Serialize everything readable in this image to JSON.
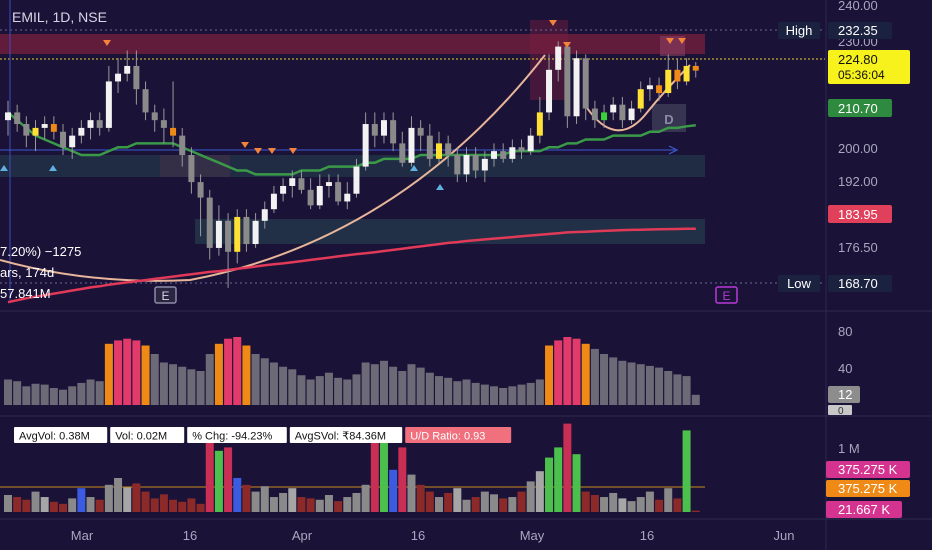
{
  "symbol_header": "EMIL, 1D, NSE",
  "chart_data": {
    "type": "candlestick",
    "title": "EMIL, 1D, NSE",
    "x_ticks": [
      "Mar",
      "16",
      "Apr",
      "16",
      "May",
      "16",
      "Jun"
    ],
    "y_ticks": [
      "240.00",
      "230.00",
      "224.80",
      "210.70",
      "200.00",
      "192.00",
      "183.95",
      "176.50",
      "168.70"
    ],
    "ylim": [
      164,
      242
    ],
    "price_labels": {
      "high_label": "High",
      "high": "232.35",
      "last": "224.80",
      "countdown": "05:36:04",
      "ma_short": "210.70",
      "ma_long": "183.95",
      "low_label": "Low",
      "low": "168.70"
    },
    "candles": [
      {
        "o": 212,
        "c": 214,
        "h": 217,
        "l": 208
      },
      {
        "o": 214,
        "c": 211,
        "h": 216,
        "l": 209
      },
      {
        "o": 211,
        "c": 208,
        "h": 213,
        "l": 205
      },
      {
        "o": 208,
        "c": 210,
        "h": 212,
        "l": 204
      },
      {
        "o": 210,
        "c": 211,
        "h": 213,
        "l": 207
      },
      {
        "o": 211,
        "c": 209,
        "h": 213,
        "l": 207
      },
      {
        "o": 209,
        "c": 205,
        "h": 211,
        "l": 203
      },
      {
        "o": 205,
        "c": 208,
        "h": 210,
        "l": 202
      },
      {
        "o": 208,
        "c": 210,
        "h": 212,
        "l": 206
      },
      {
        "o": 210,
        "c": 212,
        "h": 214,
        "l": 207
      },
      {
        "o": 212,
        "c": 210,
        "h": 214,
        "l": 208
      },
      {
        "o": 210,
        "c": 222,
        "h": 226,
        "l": 209
      },
      {
        "o": 222,
        "c": 224,
        "h": 228,
        "l": 219
      },
      {
        "o": 224,
        "c": 226,
        "h": 230,
        "l": 222
      },
      {
        "o": 226,
        "c": 220,
        "h": 230,
        "l": 216
      },
      {
        "o": 220,
        "c": 214,
        "h": 222,
        "l": 212
      },
      {
        "o": 214,
        "c": 212,
        "h": 216,
        "l": 209
      },
      {
        "o": 212,
        "c": 210,
        "h": 215,
        "l": 206
      },
      {
        "o": 210,
        "c": 208,
        "h": 222,
        "l": 205
      },
      {
        "o": 208,
        "c": 203,
        "h": 210,
        "l": 200
      },
      {
        "o": 203,
        "c": 196,
        "h": 205,
        "l": 193
      },
      {
        "o": 196,
        "c": 192,
        "h": 198,
        "l": 182
      },
      {
        "o": 192,
        "c": 179,
        "h": 194,
        "l": 176
      },
      {
        "o": 179,
        "c": 186,
        "h": 190,
        "l": 177
      },
      {
        "o": 186,
        "c": 178,
        "h": 188,
        "l": 168.7
      },
      {
        "o": 178,
        "c": 187,
        "h": 189,
        "l": 175
      },
      {
        "o": 187,
        "c": 180,
        "h": 189,
        "l": 178
      },
      {
        "o": 180,
        "c": 186,
        "h": 188,
        "l": 179
      },
      {
        "o": 186,
        "c": 189,
        "h": 191,
        "l": 184
      },
      {
        "o": 189,
        "c": 193,
        "h": 195,
        "l": 188
      },
      {
        "o": 193,
        "c": 195,
        "h": 197,
        "l": 191
      },
      {
        "o": 195,
        "c": 197,
        "h": 199,
        "l": 192
      },
      {
        "o": 197,
        "c": 194,
        "h": 199,
        "l": 193
      },
      {
        "o": 194,
        "c": 190,
        "h": 197,
        "l": 189
      },
      {
        "o": 190,
        "c": 195,
        "h": 198,
        "l": 189
      },
      {
        "o": 195,
        "c": 196,
        "h": 198,
        "l": 192
      },
      {
        "o": 196,
        "c": 191,
        "h": 198,
        "l": 190
      },
      {
        "o": 191,
        "c": 193,
        "h": 196,
        "l": 189
      },
      {
        "o": 193,
        "c": 200,
        "h": 202,
        "l": 192
      },
      {
        "o": 200,
        "c": 211,
        "h": 214,
        "l": 199
      },
      {
        "o": 211,
        "c": 208,
        "h": 214,
        "l": 205
      },
      {
        "o": 208,
        "c": 212,
        "h": 214,
        "l": 206
      },
      {
        "o": 212,
        "c": 206,
        "h": 214,
        "l": 204
      },
      {
        "o": 206,
        "c": 201,
        "h": 209,
        "l": 200
      },
      {
        "o": 201,
        "c": 210,
        "h": 213,
        "l": 200
      },
      {
        "o": 210,
        "c": 208,
        "h": 212,
        "l": 204
      },
      {
        "o": 208,
        "c": 202,
        "h": 211,
        "l": 200
      },
      {
        "o": 202,
        "c": 206,
        "h": 209,
        "l": 201
      },
      {
        "o": 206,
        "c": 203,
        "h": 208,
        "l": 200
      },
      {
        "o": 203,
        "c": 198,
        "h": 205,
        "l": 196
      },
      {
        "o": 198,
        "c": 203,
        "h": 205,
        "l": 196
      },
      {
        "o": 203,
        "c": 199,
        "h": 205,
        "l": 197
      },
      {
        "o": 199,
        "c": 202,
        "h": 204,
        "l": 196
      },
      {
        "o": 202,
        "c": 204,
        "h": 206,
        "l": 200
      },
      {
        "o": 204,
        "c": 202,
        "h": 206,
        "l": 201
      },
      {
        "o": 202,
        "c": 205,
        "h": 207,
        "l": 201
      },
      {
        "o": 205,
        "c": 204,
        "h": 207,
        "l": 202
      },
      {
        "o": 204,
        "c": 208,
        "h": 210,
        "l": 203
      },
      {
        "o": 208,
        "c": 214,
        "h": 218,
        "l": 206
      },
      {
        "o": 214,
        "c": 225,
        "h": 229,
        "l": 212
      },
      {
        "o": 225,
        "c": 231,
        "h": 232.35,
        "l": 222
      },
      {
        "o": 231,
        "c": 213,
        "h": 232,
        "l": 210
      },
      {
        "o": 213,
        "c": 228,
        "h": 230,
        "l": 211
      },
      {
        "o": 228,
        "c": 215,
        "h": 229,
        "l": 212
      },
      {
        "o": 215,
        "c": 212,
        "h": 217,
        "l": 210
      },
      {
        "o": 212,
        "c": 214,
        "h": 216,
        "l": 210
      },
      {
        "o": 214,
        "c": 216,
        "h": 218,
        "l": 212
      },
      {
        "o": 216,
        "c": 212,
        "h": 218,
        "l": 210
      },
      {
        "o": 212,
        "c": 215,
        "h": 217,
        "l": 211
      },
      {
        "o": 215,
        "c": 220,
        "h": 222,
        "l": 214
      },
      {
        "o": 220,
        "c": 221,
        "h": 223,
        "l": 217
      },
      {
        "o": 221,
        "c": 219,
        "h": 223,
        "l": 217
      },
      {
        "o": 219,
        "c": 225,
        "h": 229,
        "l": 218
      },
      {
        "o": 225,
        "c": 222,
        "h": 228,
        "l": 220
      },
      {
        "o": 222,
        "c": 226,
        "h": 228,
        "l": 221
      },
      {
        "o": 226,
        "c": 224.8,
        "h": 227,
        "l": 223
      }
    ],
    "ma_short_values": [
      214,
      212,
      210,
      208,
      207,
      206,
      205,
      204,
      203,
      203,
      203,
      204,
      205,
      205,
      206,
      206,
      206,
      206,
      206,
      205,
      204,
      203,
      202,
      201,
      200,
      199,
      199,
      198,
      198,
      198,
      198,
      198,
      199,
      199,
      199,
      200,
      200,
      200,
      200,
      201,
      201,
      202,
      202,
      202,
      202,
      203,
      203,
      203,
      203,
      203,
      203,
      203,
      203,
      203,
      203,
      204,
      204,
      204,
      204,
      205,
      205,
      206,
      206,
      207,
      207,
      207,
      208,
      208,
      208,
      208,
      209,
      209,
      210,
      210,
      210.4,
      210.7
    ],
    "ma_long_values": [
      165,
      165.5,
      166,
      166.4,
      166.8,
      167.2,
      167.6,
      168,
      168.4,
      168.8,
      169.1,
      169.5,
      169.8,
      170.1,
      170.4,
      170.7,
      171,
      171.3,
      171.6,
      171.9,
      172.2,
      172.5,
      172.8,
      173,
      173.3,
      173.6,
      173.9,
      174.2,
      174.5,
      174.8,
      175,
      175.3,
      175.6,
      175.9,
      176.2,
      176.5,
      176.8,
      177.1,
      177.4,
      177.6,
      177.9,
      178.2,
      178.5,
      178.8,
      179.1,
      179.4,
      179.7,
      180,
      180.3,
      180.5,
      180.8,
      181,
      181.2,
      181.4,
      181.6,
      181.8,
      182,
      182.2,
      182.4,
      182.6,
      182.8,
      183,
      183.1,
      183.2,
      183.3,
      183.4,
      183.5,
      183.6,
      183.65,
      183.7,
      183.75,
      183.8,
      183.85,
      183.9,
      183.95,
      183.95
    ],
    "info_labels": [
      "7.20%) −1275",
      "ars, 174d",
      "57.841M"
    ],
    "earnings_marker": "E",
    "d_marker": "D",
    "rsi_panel": {
      "y_ticks": [
        "80",
        "40",
        "0"
      ],
      "current_label": "12",
      "values": [
        30,
        28,
        22,
        25,
        24,
        20,
        18,
        22,
        26,
        30,
        28,
        72,
        76,
        78,
        76,
        70,
        60,
        50,
        48,
        45,
        42,
        40,
        60,
        72,
        78,
        80,
        70,
        60,
        55,
        50,
        45,
        42,
        35,
        30,
        34,
        38,
        32,
        30,
        36,
        50,
        48,
        52,
        45,
        40,
        48,
        44,
        38,
        34,
        32,
        28,
        30,
        26,
        24,
        22,
        20,
        22,
        24,
        26,
        30,
        70,
        76,
        80,
        78,
        72,
        66,
        60,
        56,
        52,
        50,
        48,
        46,
        44,
        40,
        36,
        34,
        12
      ]
    },
    "volume_panel": {
      "stats": [
        "AvgVol: 0.38M",
        "Vol: 0.02M",
        "% Chg: -94.23%",
        "AvgSVol: ₹84.36M",
        "U/D Ratio: 0.93"
      ],
      "y_tick": "1 M",
      "labels": [
        "375.275 K",
        "375.275 K",
        "21.667 K"
      ],
      "values": [
        0.25,
        0.22,
        0.18,
        0.3,
        0.22,
        0.15,
        0.12,
        0.2,
        0.35,
        0.22,
        0.18,
        0.4,
        0.5,
        0.36,
        0.42,
        0.3,
        0.2,
        0.26,
        0.18,
        0.15,
        0.2,
        0.12,
        1.05,
        0.9,
        0.95,
        0.5,
        0.4,
        0.3,
        0.38,
        0.22,
        0.28,
        0.35,
        0.22,
        0.2,
        0.18,
        0.25,
        0.16,
        0.22,
        0.28,
        0.4,
        1.2,
        1.05,
        0.62,
        0.95,
        0.55,
        0.4,
        0.3,
        0.22,
        0.28,
        0.35,
        0.18,
        0.22,
        0.3,
        0.26,
        0.2,
        0.22,
        0.3,
        0.45,
        0.6,
        0.8,
        0.95,
        1.3,
        0.85,
        0.3,
        0.25,
        0.22,
        0.28,
        0.2,
        0.16,
        0.22,
        0.3,
        0.18,
        0.35,
        0.2,
        1.2,
        0.02
      ]
    }
  }
}
